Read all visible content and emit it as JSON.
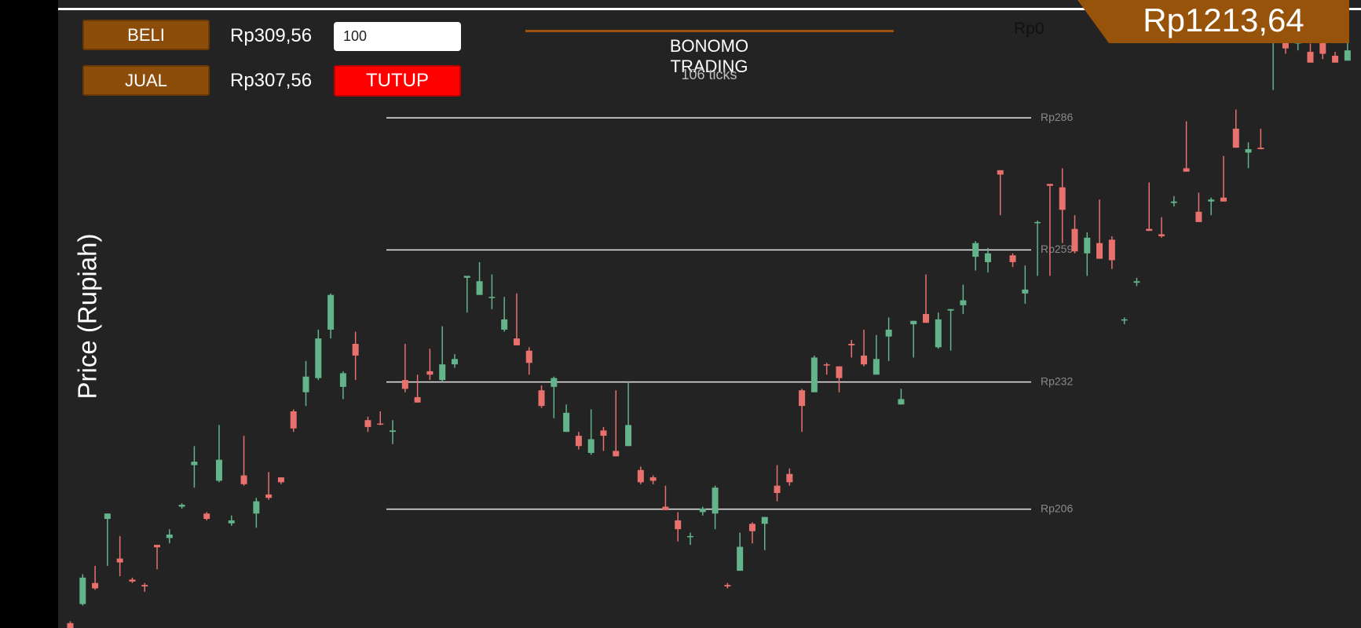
{
  "buy_button": "BELI",
  "sell_button": "JUAL",
  "buy_price": "Rp309,56",
  "sell_price": "Rp307,56",
  "quantity": "100",
  "close_button": "TUTUP",
  "title": "BONOMO TRADING",
  "tick_count": "106 ticks",
  "balance": "Rp0",
  "equity": "Rp1213,64",
  "chart_data": {
    "type": "candlestick",
    "y_label": "Price (Rupiah)",
    "ylim": [
      181.7,
      310.1
    ],
    "yticks": [
      {
        "value": 286,
        "label": "Rp286"
      },
      {
        "value": 259,
        "label": "Rp259"
      },
      {
        "value": 232,
        "label": "Rp232"
      },
      {
        "value": 206,
        "label": "Rp206"
      }
    ],
    "grid": true,
    "up_color": "#63b38b",
    "down_color": "#e8706d",
    "open": [
      182.7,
      186.6,
      190.9,
      204.0,
      195.9,
      191.6,
      190.5,
      198.7,
      200.1,
      206.5,
      215.0,
      205.1,
      211.8,
      203.1,
      212.9,
      205.1,
      209.0,
      212.5,
      226.0,
      229.9,
      232.8,
      242.7,
      231.0,
      239.8,
      224.2,
      223.5,
      221.8,
      232.4,
      228.9,
      234.2,
      232.4,
      235.6,
      253.3,
      249.8,
      249.3,
      242.7,
      240.9,
      238.4,
      230.3,
      231.0,
      221.8,
      221.0,
      217.5,
      222.1,
      217.9,
      218.9,
      214.0,
      212.5,
      206.5,
      203.7,
      200.3,
      205.4,
      205.1,
      190.5,
      193.4,
      203.0,
      203.0,
      210.8,
      213.2,
      230.3,
      229.9,
      235.6,
      235.2,
      239.8,
      237.4,
      233.5,
      241.3,
      227.4,
      243.8,
      245.9,
      239.1,
      246.6,
      247.7,
      257.6,
      256.5,
      275.3,
      257.9,
      250.1,
      264.5,
      272.5,
      271.8,
      263.3,
      258.3,
      260.4,
      261.1,
      244.6,
      252.3,
      263.3,
      262.2,
      268.6,
      275.7,
      266.8,
      268.9,
      269.7,
      283.8,
      278.9,
      279.9,
      302.3,
      303.0,
      301.2,
      299.5,
      303.0,
      298.7,
      297.7
    ],
    "high": [
      183.1,
      192.7,
      194.4,
      205.1,
      200.5,
      192.0,
      190.9,
      198.7,
      201.9,
      207.2,
      218.9,
      205.4,
      223.2,
      204.7,
      221.0,
      208.3,
      213.6,
      212.5,
      226.4,
      236.3,
      242.7,
      250.1,
      234.2,
      242.3,
      224.9,
      226.0,
      224.2,
      239.8,
      233.5,
      238.8,
      243.4,
      237.7,
      253.7,
      256.5,
      254.0,
      249.4,
      250.1,
      239.1,
      231.3,
      233.1,
      227.4,
      221.8,
      226.4,
      222.8,
      230.3,
      232.0,
      214.7,
      212.9,
      210.8,
      205.4,
      201.2,
      206.5,
      210.8,
      190.9,
      201.2,
      203.3,
      204.4,
      215.0,
      214.3,
      230.6,
      237.4,
      235.9,
      235.2,
      240.6,
      242.7,
      241.6,
      245.2,
      230.6,
      244.5,
      254.0,
      246.2,
      246.9,
      251.9,
      260.8,
      259.4,
      275.3,
      258.3,
      255.8,
      265.0,
      272.5,
      275.7,
      266.1,
      262.6,
      269.3,
      261.8,
      245.2,
      253.3,
      272.8,
      265.7,
      270.0,
      285.3,
      270.7,
      269.7,
      278.2,
      287.7,
      281.0,
      283.8,
      303.0,
      303.0,
      303.0,
      301.2,
      303.0,
      299.5,
      303.0
    ],
    "low": [
      181.7,
      186.3,
      189.5,
      194.4,
      192.3,
      190.9,
      189.1,
      193.7,
      199.0,
      206.1,
      210.4,
      203.7,
      211.5,
      202.6,
      210.8,
      202.2,
      207.9,
      211.1,
      221.8,
      227.1,
      232.4,
      240.9,
      228.5,
      232.4,
      221.8,
      223.2,
      219.3,
      229.9,
      227.8,
      232.4,
      232.0,
      234.9,
      246.2,
      249.8,
      246.9,
      242.3,
      239.5,
      233.5,
      226.7,
      224.6,
      221.8,
      218.2,
      217.1,
      217.9,
      216.8,
      218.9,
      211.1,
      211.1,
      205.8,
      199.4,
      198.7,
      204.7,
      201.9,
      189.8,
      193.4,
      199.0,
      197.6,
      207.6,
      210.8,
      221.8,
      229.9,
      233.5,
      229.9,
      237.0,
      235.2,
      233.5,
      236.3,
      227.4,
      237.0,
      244.1,
      238.8,
      238.4,
      245.9,
      254.8,
      254.4,
      266.1,
      255.5,
      248.0,
      253.7,
      253.7,
      260.4,
      258.3,
      253.7,
      257.2,
      255.1,
      243.8,
      251.6,
      262.9,
      261.5,
      267.9,
      275.0,
      264.7,
      266.1,
      268.9,
      279.9,
      275.7,
      279.6,
      291.7,
      299.1,
      299.8,
      297.3,
      298.0,
      297.3,
      297.7
    ],
    "close": [
      181.7,
      192.0,
      189.8,
      205.1,
      195.1,
      191.2,
      190.2,
      198.2,
      200.8,
      206.9,
      215.7,
      204.0,
      216.1,
      203.7,
      211.1,
      207.6,
      208.3,
      211.5,
      222.5,
      233.1,
      240.9,
      249.8,
      233.8,
      237.4,
      222.8,
      223.3,
      222.1,
      230.6,
      227.8,
      233.5,
      235.6,
      236.7,
      253.7,
      252.6,
      249.4,
      244.8,
      239.5,
      235.9,
      227.1,
      232.8,
      225.7,
      218.9,
      220.3,
      221.0,
      216.8,
      223.2,
      211.5,
      211.8,
      205.8,
      201.9,
      200.5,
      206.1,
      210.4,
      190.2,
      198.3,
      201.5,
      204.4,
      209.3,
      211.5,
      227.1,
      237.0,
      235.4,
      232.8,
      239.5,
      235.6,
      236.7,
      242.7,
      228.5,
      244.5,
      244.1,
      244.8,
      246.9,
      248.7,
      260.4,
      258.3,
      274.4,
      256.5,
      250.9,
      264.7,
      272.1,
      267.2,
      258.7,
      261.5,
      257.2,
      256.9,
      244.8,
      252.6,
      262.9,
      261.8,
      268.9,
      275.0,
      264.7,
      269.3,
      268.9,
      279.9,
      279.6,
      279.6,
      303.0,
      300.2,
      303.0,
      297.3,
      299.1,
      297.3,
      299.8
    ]
  }
}
